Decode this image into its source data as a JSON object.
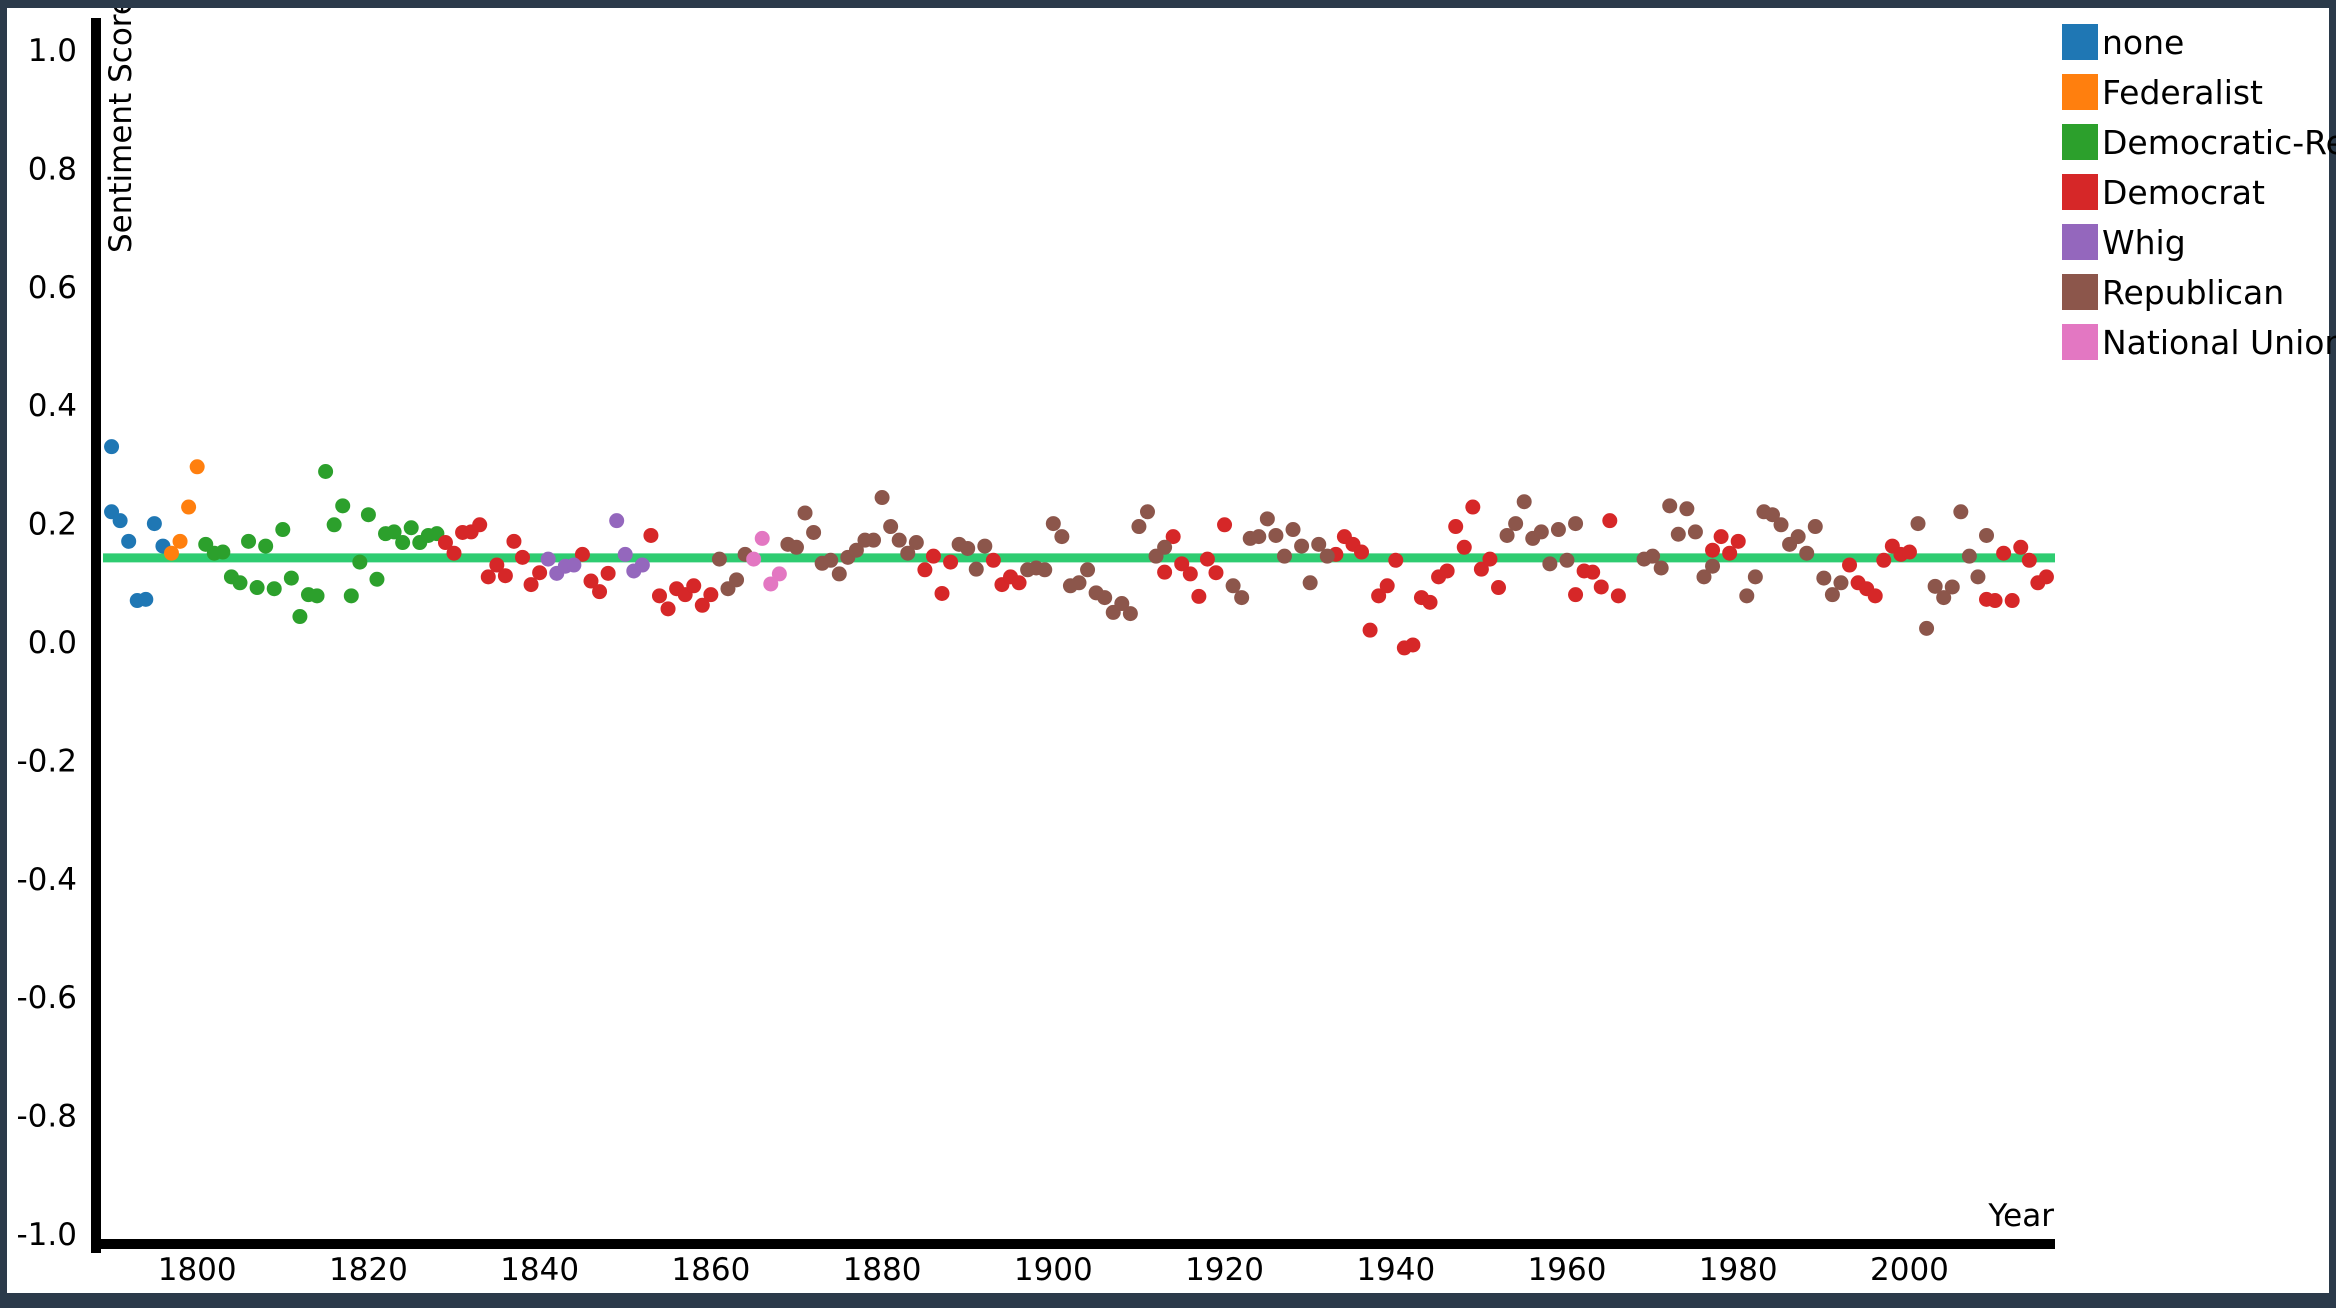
{
  "chart_data": {
    "type": "scatter",
    "title": "",
    "xlabel": "Year",
    "ylabel": "Sentiment Score",
    "xlim": [
      1789,
      2017
    ],
    "ylim": [
      -1.0,
      1.0
    ],
    "x_ticks": [
      1800,
      1820,
      1840,
      1860,
      1880,
      1900,
      1920,
      1940,
      1960,
      1980,
      2000
    ],
    "y_ticks": [
      "1.0",
      "0.8",
      "0.6",
      "0.4",
      "0.2",
      "0.0",
      "-0.2",
      "-0.4",
      "-0.6",
      "-0.8",
      "-1.0"
    ],
    "grid": false,
    "legend_position": "top-right",
    "reference_line": {
      "y": 0.142,
      "color": "#2ecc71"
    },
    "series": [
      {
        "name": "none",
        "color": "#1f77b4",
        "points": [
          [
            1790,
            0.33
          ],
          [
            1790,
            0.22
          ],
          [
            1791,
            0.205
          ],
          [
            1792,
            0.17
          ],
          [
            1793,
            0.07
          ],
          [
            1794,
            0.072
          ],
          [
            1795,
            0.2
          ],
          [
            1796,
            0.162
          ]
        ]
      },
      {
        "name": "Federalist",
        "color": "#ff7f0e",
        "points": [
          [
            1797,
            0.15
          ],
          [
            1798,
            0.17
          ],
          [
            1799,
            0.228
          ],
          [
            1800,
            0.296
          ]
        ]
      },
      {
        "name": "Democratic-Republican",
        "color": "#2ca02c",
        "points": [
          [
            1801,
            0.165
          ],
          [
            1802,
            0.15
          ],
          [
            1803,
            0.152
          ],
          [
            1804,
            0.11
          ],
          [
            1805,
            0.1
          ],
          [
            1806,
            0.17
          ],
          [
            1807,
            0.092
          ],
          [
            1808,
            0.162
          ],
          [
            1809,
            0.09
          ],
          [
            1810,
            0.19
          ],
          [
            1811,
            0.108
          ],
          [
            1812,
            0.043
          ],
          [
            1813,
            0.08
          ],
          [
            1814,
            0.078
          ],
          [
            1815,
            0.288
          ],
          [
            1816,
            0.198
          ],
          [
            1817,
            0.23
          ],
          [
            1818,
            0.078
          ],
          [
            1819,
            0.135
          ],
          [
            1820,
            0.215
          ],
          [
            1821,
            0.106
          ],
          [
            1822,
            0.183
          ],
          [
            1823,
            0.186
          ],
          [
            1824,
            0.168
          ],
          [
            1825,
            0.193
          ],
          [
            1826,
            0.168
          ],
          [
            1827,
            0.18
          ],
          [
            1828,
            0.183
          ]
        ]
      },
      {
        "name": "Democrat",
        "color": "#d62728",
        "points": [
          [
            1829,
            0.168
          ],
          [
            1830,
            0.15
          ],
          [
            1831,
            0.185
          ],
          [
            1832,
            0.186
          ],
          [
            1833,
            0.198
          ],
          [
            1834,
            0.11
          ],
          [
            1835,
            0.13
          ],
          [
            1836,
            0.112
          ],
          [
            1837,
            0.17
          ],
          [
            1838,
            0.143
          ],
          [
            1839,
            0.097
          ],
          [
            1840,
            0.117
          ],
          [
            1845,
            0.148
          ],
          [
            1846,
            0.103
          ],
          [
            1847,
            0.085
          ],
          [
            1848,
            0.116
          ],
          [
            1853,
            0.18
          ],
          [
            1854,
            0.078
          ],
          [
            1855,
            0.056
          ],
          [
            1856,
            0.09
          ],
          [
            1857,
            0.08
          ],
          [
            1858,
            0.095
          ],
          [
            1859,
            0.062
          ],
          [
            1860,
            0.08
          ],
          [
            1885,
            0.122
          ],
          [
            1886,
            0.145
          ],
          [
            1887,
            0.082
          ],
          [
            1888,
            0.135
          ],
          [
            1893,
            0.138
          ],
          [
            1894,
            0.097
          ],
          [
            1895,
            0.11
          ],
          [
            1896,
            0.1
          ],
          [
            1913,
            0.118
          ],
          [
            1914,
            0.178
          ],
          [
            1915,
            0.132
          ],
          [
            1916,
            0.115
          ],
          [
            1917,
            0.077
          ],
          [
            1918,
            0.14
          ],
          [
            1919,
            0.117
          ],
          [
            1920,
            0.198
          ],
          [
            1933,
            0.148
          ],
          [
            1934,
            0.178
          ],
          [
            1935,
            0.165
          ],
          [
            1936,
            0.152
          ],
          [
            1937,
            0.02
          ],
          [
            1938,
            0.078
          ],
          [
            1939,
            0.095
          ],
          [
            1940,
            0.138
          ],
          [
            1941,
            -0.01
          ],
          [
            1942,
            -0.005
          ],
          [
            1943,
            0.075
          ],
          [
            1944,
            0.067
          ],
          [
            1945,
            0.11
          ],
          [
            1946,
            0.12
          ],
          [
            1947,
            0.195
          ],
          [
            1948,
            0.16
          ],
          [
            1949,
            0.228
          ],
          [
            1950,
            0.123
          ],
          [
            1951,
            0.14
          ],
          [
            1952,
            0.092
          ],
          [
            1961,
            0.08
          ],
          [
            1962,
            0.12
          ],
          [
            1963,
            0.118
          ],
          [
            1964,
            0.093
          ],
          [
            1965,
            0.205
          ],
          [
            1966,
            0.078
          ],
          [
            1977,
            0.155
          ],
          [
            1978,
            0.178
          ],
          [
            1979,
            0.15
          ],
          [
            1980,
            0.17
          ],
          [
            1993,
            0.13
          ],
          [
            1994,
            0.1
          ],
          [
            1995,
            0.09
          ],
          [
            1996,
            0.078
          ],
          [
            1997,
            0.138
          ],
          [
            1998,
            0.162
          ],
          [
            1999,
            0.148
          ],
          [
            2000,
            0.152
          ],
          [
            2009,
            0.072
          ],
          [
            2010,
            0.07
          ],
          [
            2011,
            0.15
          ],
          [
            2012,
            0.07
          ],
          [
            2013,
            0.16
          ],
          [
            2014,
            0.138
          ],
          [
            2015,
            0.1
          ],
          [
            2016,
            0.11
          ]
        ]
      },
      {
        "name": "Whig",
        "color": "#9467bd",
        "points": [
          [
            1841,
            0.14
          ],
          [
            1842,
            0.116
          ],
          [
            1843,
            0.128
          ],
          [
            1844,
            0.13
          ],
          [
            1849,
            0.205
          ],
          [
            1850,
            0.148
          ],
          [
            1851,
            0.12
          ],
          [
            1852,
            0.13
          ]
        ]
      },
      {
        "name": "Republican",
        "color": "#8c564b",
        "points": [
          [
            1861,
            0.14
          ],
          [
            1862,
            0.09
          ],
          [
            1863,
            0.105
          ],
          [
            1864,
            0.148
          ],
          [
            1869,
            0.165
          ],
          [
            1870,
            0.16
          ],
          [
            1871,
            0.218
          ],
          [
            1872,
            0.185
          ],
          [
            1873,
            0.133
          ],
          [
            1874,
            0.138
          ],
          [
            1875,
            0.115
          ],
          [
            1876,
            0.143
          ],
          [
            1877,
            0.155
          ],
          [
            1878,
            0.172
          ],
          [
            1879,
            0.172
          ],
          [
            1880,
            0.244
          ],
          [
            1881,
            0.195
          ],
          [
            1882,
            0.172
          ],
          [
            1883,
            0.15
          ],
          [
            1884,
            0.168
          ],
          [
            1889,
            0.165
          ],
          [
            1890,
            0.158
          ],
          [
            1891,
            0.123
          ],
          [
            1892,
            0.162
          ],
          [
            1897,
            0.122
          ],
          [
            1898,
            0.125
          ],
          [
            1899,
            0.122
          ],
          [
            1900,
            0.2
          ],
          [
            1901,
            0.178
          ],
          [
            1902,
            0.095
          ],
          [
            1903,
            0.1
          ],
          [
            1904,
            0.122
          ],
          [
            1905,
            0.083
          ],
          [
            1906,
            0.075
          ],
          [
            1907,
            0.05
          ],
          [
            1908,
            0.065
          ],
          [
            1909,
            0.048
          ],
          [
            1910,
            0.195
          ],
          [
            1911,
            0.22
          ],
          [
            1912,
            0.145
          ],
          [
            1913,
            0.16
          ],
          [
            1921,
            0.095
          ],
          [
            1922,
            0.075
          ],
          [
            1923,
            0.175
          ],
          [
            1924,
            0.178
          ],
          [
            1925,
            0.208
          ],
          [
            1926,
            0.18
          ],
          [
            1927,
            0.145
          ],
          [
            1928,
            0.19
          ],
          [
            1929,
            0.162
          ],
          [
            1930,
            0.1
          ],
          [
            1931,
            0.165
          ],
          [
            1932,
            0.145
          ],
          [
            1953,
            0.18
          ],
          [
            1954,
            0.2
          ],
          [
            1955,
            0.237
          ],
          [
            1956,
            0.175
          ],
          [
            1957,
            0.186
          ],
          [
            1958,
            0.132
          ],
          [
            1959,
            0.19
          ],
          [
            1960,
            0.138
          ],
          [
            1961,
            0.2
          ],
          [
            1969,
            0.14
          ],
          [
            1970,
            0.145
          ],
          [
            1971,
            0.125
          ],
          [
            1972,
            0.23
          ],
          [
            1973,
            0.182
          ],
          [
            1974,
            0.225
          ],
          [
            1975,
            0.186
          ],
          [
            1976,
            0.11
          ],
          [
            1977,
            0.128
          ],
          [
            1981,
            0.078
          ],
          [
            1982,
            0.11
          ],
          [
            1983,
            0.22
          ],
          [
            1984,
            0.215
          ],
          [
            1985,
            0.198
          ],
          [
            1986,
            0.165
          ],
          [
            1987,
            0.178
          ],
          [
            1988,
            0.15
          ],
          [
            1989,
            0.195
          ],
          [
            1990,
            0.108
          ],
          [
            1991,
            0.08
          ],
          [
            1992,
            0.1
          ],
          [
            2001,
            0.2
          ],
          [
            2002,
            0.023
          ],
          [
            2003,
            0.094
          ],
          [
            2004,
            0.075
          ],
          [
            2005,
            0.093
          ],
          [
            2006,
            0.22
          ],
          [
            2007,
            0.145
          ],
          [
            2008,
            0.11
          ],
          [
            2009,
            0.18
          ]
        ]
      },
      {
        "name": "National Union",
        "color": "#e377c2",
        "points": [
          [
            1865,
            0.14
          ],
          [
            1866,
            0.175
          ],
          [
            1867,
            0.098
          ],
          [
            1868,
            0.115
          ]
        ]
      }
    ]
  }
}
